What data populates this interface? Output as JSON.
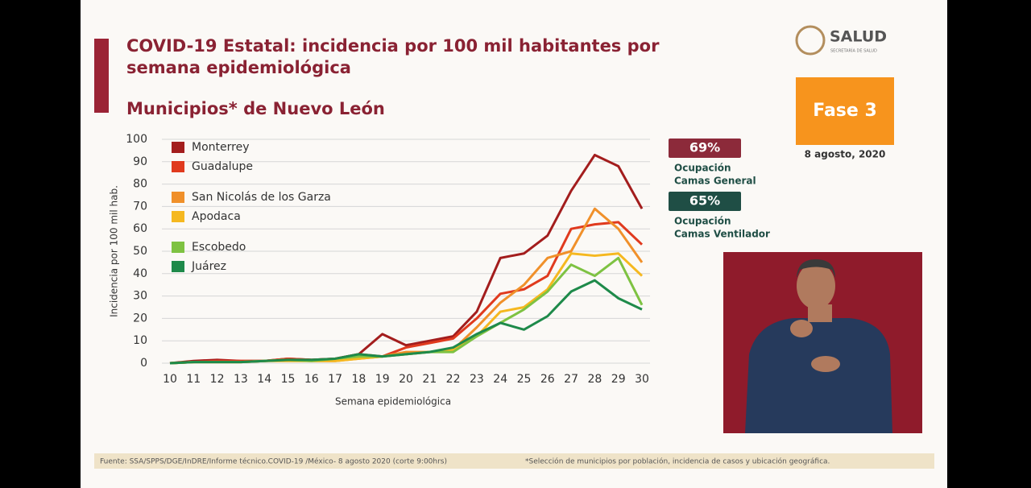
{
  "header": {
    "title_lines": [
      "COVID-19 Estatal: incidencia por 100 mil habitantes por",
      "semana epidemiológica"
    ],
    "subtitle": "Municipios* de Nuevo León"
  },
  "logo": {
    "name": "SALUD",
    "caption": "SECRETARÍA DE SALUD"
  },
  "phase": {
    "label": "Fase 3",
    "date": "8 agosto, 2020"
  },
  "badges": [
    {
      "value": "69%",
      "label_lines": [
        "Ocupación",
        "Camas General"
      ]
    },
    {
      "value": "65%",
      "label_lines": [
        "Ocupación",
        "Camas Ventilador"
      ]
    }
  ],
  "chart_data": {
    "type": "line",
    "xlabel": "Semana epidemiológica",
    "ylabel": "Incidencia por 100 mil hab.",
    "x": [
      10,
      11,
      12,
      13,
      14,
      15,
      16,
      17,
      18,
      19,
      20,
      21,
      22,
      23,
      24,
      25,
      26,
      27,
      28,
      29,
      30
    ],
    "xlim": [
      10,
      30
    ],
    "xticks": [
      10,
      11,
      12,
      13,
      14,
      15,
      16,
      17,
      18,
      19,
      20,
      21,
      22,
      23,
      24,
      25,
      26,
      27,
      28,
      29,
      30
    ],
    "ylim": [
      0,
      100
    ],
    "yticks": [
      0,
      10,
      20,
      30,
      40,
      50,
      60,
      70,
      80,
      90,
      100
    ],
    "grid": true,
    "legend": "upper left",
    "series": [
      {
        "name": "Monterrey",
        "color": "#a31d1d",
        "values": [
          0,
          1,
          1.5,
          1,
          1,
          2,
          1.5,
          2,
          4,
          13,
          8,
          10,
          12,
          23,
          47,
          49,
          57,
          77,
          93,
          88,
          69
        ]
      },
      {
        "name": "Guadalupe",
        "color": "#e03a1e",
        "values": [
          0,
          0.5,
          1,
          1,
          1,
          2,
          1.5,
          2,
          4,
          3,
          7,
          9,
          11,
          20,
          31,
          33,
          39,
          60,
          62,
          63,
          53
        ]
      },
      {
        "name": "San Nicolás de los Garza",
        "color": "#f0902a",
        "values": [
          0,
          0.5,
          0.5,
          0.5,
          1,
          1.5,
          1,
          1,
          2,
          3,
          5,
          5,
          6,
          16,
          27,
          35,
          47,
          50,
          69,
          60,
          45
        ]
      },
      {
        "name": "Apodaca",
        "color": "#f5b820",
        "values": [
          0,
          0.5,
          0.5,
          0.5,
          1,
          1,
          1,
          1,
          2,
          3,
          4,
          5,
          6,
          12,
          23,
          25,
          33,
          49,
          48,
          49,
          39
        ]
      },
      {
        "name": "Escobedo",
        "color": "#7ec242",
        "values": [
          0,
          0.5,
          0.5,
          0.5,
          1,
          1.5,
          1,
          2,
          3,
          3,
          4,
          5,
          5,
          12,
          18,
          24,
          32,
          44,
          39,
          47,
          26
        ]
      },
      {
        "name": "Juárez",
        "color": "#1e8a4a",
        "values": [
          0,
          0.5,
          0.5,
          0.5,
          1,
          1.5,
          1.5,
          2,
          4,
          3,
          4,
          5,
          7,
          13,
          18,
          15,
          21,
          32,
          37,
          29,
          24
        ]
      }
    ]
  },
  "footer": {
    "source": "Fuente: SSA/SPPS/DGE/InDRE/Informe técnico.COVID-19 /México- 8 agosto 2020 (corte 9:00hrs)",
    "note": "*Selección de municipios por población, incidencia de casos y ubicación geográfica."
  }
}
